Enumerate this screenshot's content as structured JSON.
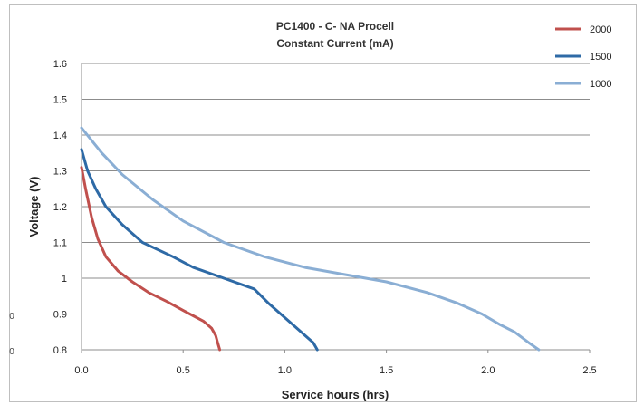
{
  "chart_data": {
    "type": "line",
    "title": "PC1400 - C- NA Procell",
    "subtitle": "Constant Current  (mA)",
    "xlabel": "Service hours (hrs)",
    "ylabel": "Voltage (V)",
    "xlim": [
      0.0,
      2.5
    ],
    "ylim": [
      0.8,
      1.6
    ],
    "xticks": [
      "0.0",
      "0.5",
      "1.0",
      "1.5",
      "2.0",
      "2.5"
    ],
    "yticks": [
      "0.8",
      "0.9",
      "1",
      "1.1",
      "1.2",
      "1.3",
      "1.4",
      "1.5",
      "1.6"
    ],
    "grid": "horizontal",
    "legend_position": "top-right",
    "series": [
      {
        "name": "2000",
        "color": "#c0504d",
        "points": [
          [
            0.0,
            1.31
          ],
          [
            0.02,
            1.25
          ],
          [
            0.05,
            1.17
          ],
          [
            0.08,
            1.11
          ],
          [
            0.12,
            1.06
          ],
          [
            0.18,
            1.02
          ],
          [
            0.25,
            0.99
          ],
          [
            0.33,
            0.96
          ],
          [
            0.42,
            0.935
          ],
          [
            0.5,
            0.91
          ],
          [
            0.55,
            0.895
          ],
          [
            0.6,
            0.88
          ],
          [
            0.64,
            0.86
          ],
          [
            0.66,
            0.84
          ],
          [
            0.67,
            0.82
          ],
          [
            0.68,
            0.8
          ]
        ]
      },
      {
        "name": "1500",
        "color": "#2e6aa6",
        "points": [
          [
            0.0,
            1.36
          ],
          [
            0.03,
            1.3
          ],
          [
            0.07,
            1.25
          ],
          [
            0.12,
            1.2
          ],
          [
            0.2,
            1.15
          ],
          [
            0.3,
            1.1
          ],
          [
            0.45,
            1.06
          ],
          [
            0.55,
            1.03
          ],
          [
            0.7,
            1.0
          ],
          [
            0.85,
            0.97
          ],
          [
            0.92,
            0.93
          ],
          [
            0.98,
            0.9
          ],
          [
            1.04,
            0.87
          ],
          [
            1.1,
            0.84
          ],
          [
            1.14,
            0.82
          ],
          [
            1.16,
            0.8
          ]
        ]
      },
      {
        "name": "1000",
        "color": "#8aaed4",
        "points": [
          [
            0.0,
            1.42
          ],
          [
            0.1,
            1.35
          ],
          [
            0.2,
            1.29
          ],
          [
            0.35,
            1.22
          ],
          [
            0.5,
            1.16
          ],
          [
            0.7,
            1.1
          ],
          [
            0.9,
            1.06
          ],
          [
            1.1,
            1.03
          ],
          [
            1.3,
            1.01
          ],
          [
            1.5,
            0.99
          ],
          [
            1.7,
            0.96
          ],
          [
            1.85,
            0.93
          ],
          [
            1.97,
            0.9
          ],
          [
            2.06,
            0.87
          ],
          [
            2.13,
            0.85
          ],
          [
            2.2,
            0.82
          ],
          [
            2.25,
            0.8
          ]
        ]
      }
    ],
    "stray_labels": [
      "0",
      "0"
    ]
  }
}
